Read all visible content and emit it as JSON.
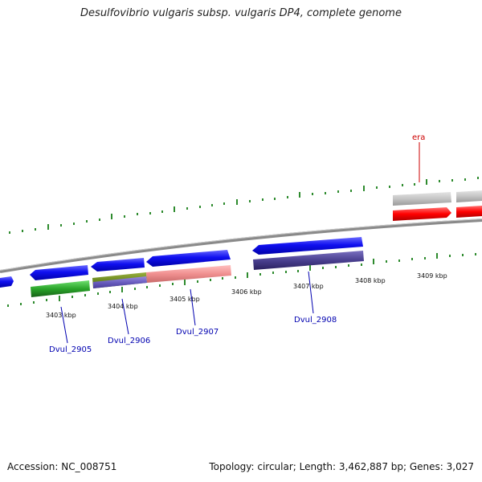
{
  "title": "Desulfovibrio vulgaris subsp. vulgaris DP4, complete genome",
  "footer": {
    "accession": "Accession: NC_008751",
    "summary": "Topology: circular; Length: 3,462,887 bp; Genes: 3,027"
  },
  "kbp_labels": [
    "3403 kbp",
    "3404 kbp",
    "3405 kbp",
    "3406 kbp",
    "3407 kbp",
    "3408 kbp",
    "3409 kbp"
  ],
  "gene_labels": [
    "Dvul_2905",
    "Dvul_2906",
    "Dvul_2907",
    "Dvul_2908",
    "era"
  ],
  "colors": {
    "backbone": "#8a8a8a",
    "cds_blue": "#1a1aee",
    "tick_green": "#2e8b2e",
    "label_blue": "#0000b0",
    "label_red": "#cc0000",
    "feature_red": "#ff0000",
    "feature_grey": "#c0c0c0"
  }
}
